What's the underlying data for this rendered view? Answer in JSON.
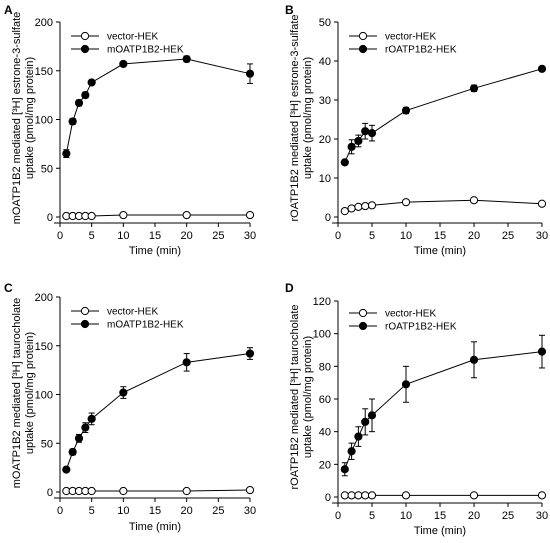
{
  "chart_data": [
    {
      "panel": "A",
      "type": "line",
      "xlabel": "Time (min)",
      "ylabel": [
        "mOATP1B2 mediated [³H] estrone-3-sulfate",
        "uptake (pmol/mg protein)"
      ],
      "xlim": [
        0,
        30
      ],
      "ylim": [
        0,
        200
      ],
      "xticks": [
        0,
        5,
        10,
        15,
        20,
        25,
        30
      ],
      "yticks": [
        0,
        50,
        100,
        150,
        200
      ],
      "legend": "top-left",
      "grid": false,
      "series": [
        {
          "name": "vector-HEK",
          "marker": "open-circle",
          "x": [
            1,
            2,
            3,
            4,
            5,
            10,
            20,
            30
          ],
          "y": [
            1,
            1,
            1,
            1,
            1,
            2,
            2,
            2
          ],
          "err": [
            0,
            0,
            0,
            0,
            0,
            0,
            0,
            0
          ]
        },
        {
          "name": "mOATP1B2-HEK",
          "marker": "filled-circle",
          "x": [
            1,
            2,
            3,
            4,
            5,
            10,
            20,
            30
          ],
          "y": [
            65,
            98,
            117,
            125,
            138,
            157,
            162,
            147
          ],
          "err": [
            4,
            3,
            3,
            3,
            2,
            2,
            3,
            10
          ]
        }
      ]
    },
    {
      "panel": "B",
      "type": "line",
      "xlabel": "Time (min)",
      "ylabel": [
        "rOATP1B2 mediated [³H] estrone-3-sulfate",
        "uptake (pmol/mg protein)"
      ],
      "xlim": [
        0,
        30
      ],
      "ylim": [
        0,
        50
      ],
      "xticks": [
        0,
        5,
        10,
        15,
        20,
        25,
        30
      ],
      "yticks": [
        0,
        10,
        20,
        30,
        40,
        50
      ],
      "legend": "top-left",
      "grid": false,
      "series": [
        {
          "name": "vector-HEK",
          "marker": "open-circle",
          "x": [
            1,
            2,
            3,
            4,
            5,
            10,
            20,
            30
          ],
          "y": [
            1.5,
            2.2,
            2.6,
            2.8,
            3.0,
            3.8,
            4.3,
            3.4
          ],
          "err": [
            0,
            0,
            0,
            0,
            0,
            0,
            0,
            0
          ]
        },
        {
          "name": "rOATP1B2-HEK",
          "marker": "filled-circle",
          "x": [
            1,
            2,
            3,
            4,
            5,
            10,
            20,
            30
          ],
          "y": [
            14,
            18,
            19.5,
            22,
            21.5,
            27.3,
            33,
            38
          ],
          "err": [
            0.5,
            1.8,
            1.5,
            2,
            2,
            0.8,
            0.8,
            0.4
          ]
        }
      ]
    },
    {
      "panel": "C",
      "type": "line",
      "xlabel": "Time (min)",
      "ylabel": [
        "mOATP1B2 mediated [³H] taurocholate",
        "uptake (pmol/mg protein)"
      ],
      "xlim": [
        0,
        30
      ],
      "ylim": [
        0,
        200
      ],
      "xticks": [
        0,
        5,
        10,
        15,
        20,
        25,
        30
      ],
      "yticks": [
        0,
        50,
        100,
        150,
        200
      ],
      "legend": "top-left",
      "grid": false,
      "series": [
        {
          "name": "vector-HEK",
          "marker": "open-circle",
          "x": [
            1,
            2,
            3,
            4,
            5,
            10,
            20,
            30
          ],
          "y": [
            1,
            1,
            1,
            1,
            1,
            1,
            1,
            2
          ],
          "err": [
            0,
            0,
            0,
            0,
            0,
            0,
            0,
            0
          ]
        },
        {
          "name": "mOATP1B2-HEK",
          "marker": "filled-circle",
          "x": [
            1,
            2,
            3,
            4,
            5,
            10,
            20,
            30
          ],
          "y": [
            23,
            41,
            55,
            66,
            75,
            102,
            133,
            142
          ],
          "err": [
            1,
            3,
            4,
            5,
            6,
            6,
            9,
            6
          ]
        }
      ]
    },
    {
      "panel": "D",
      "type": "line",
      "xlabel": "Time (min)",
      "ylabel": [
        "rOATP1B2 mediated [³H] taurocholate",
        "uptake (pmol/mg protein)"
      ],
      "xlim": [
        0,
        30
      ],
      "ylim": [
        0,
        120
      ],
      "xticks": [
        0,
        5,
        10,
        15,
        20,
        25,
        30
      ],
      "yticks": [
        0,
        20,
        40,
        60,
        80,
        100,
        120
      ],
      "legend": "top-left",
      "grid": false,
      "series": [
        {
          "name": "vector-HEK",
          "marker": "open-circle",
          "x": [
            1,
            2,
            3,
            4,
            5,
            10,
            20,
            30
          ],
          "y": [
            1,
            1,
            1,
            1,
            1,
            1,
            1,
            1
          ],
          "err": [
            0,
            0,
            0,
            0,
            0,
            0,
            0,
            0
          ]
        },
        {
          "name": "rOATP1B2-HEK",
          "marker": "filled-circle",
          "x": [
            1,
            2,
            3,
            4,
            5,
            10,
            20,
            30
          ],
          "y": [
            17,
            28,
            37,
            46,
            50,
            69,
            84,
            89
          ],
          "err": [
            4,
            5,
            6,
            8,
            10,
            11,
            11,
            10
          ]
        }
      ]
    }
  ]
}
